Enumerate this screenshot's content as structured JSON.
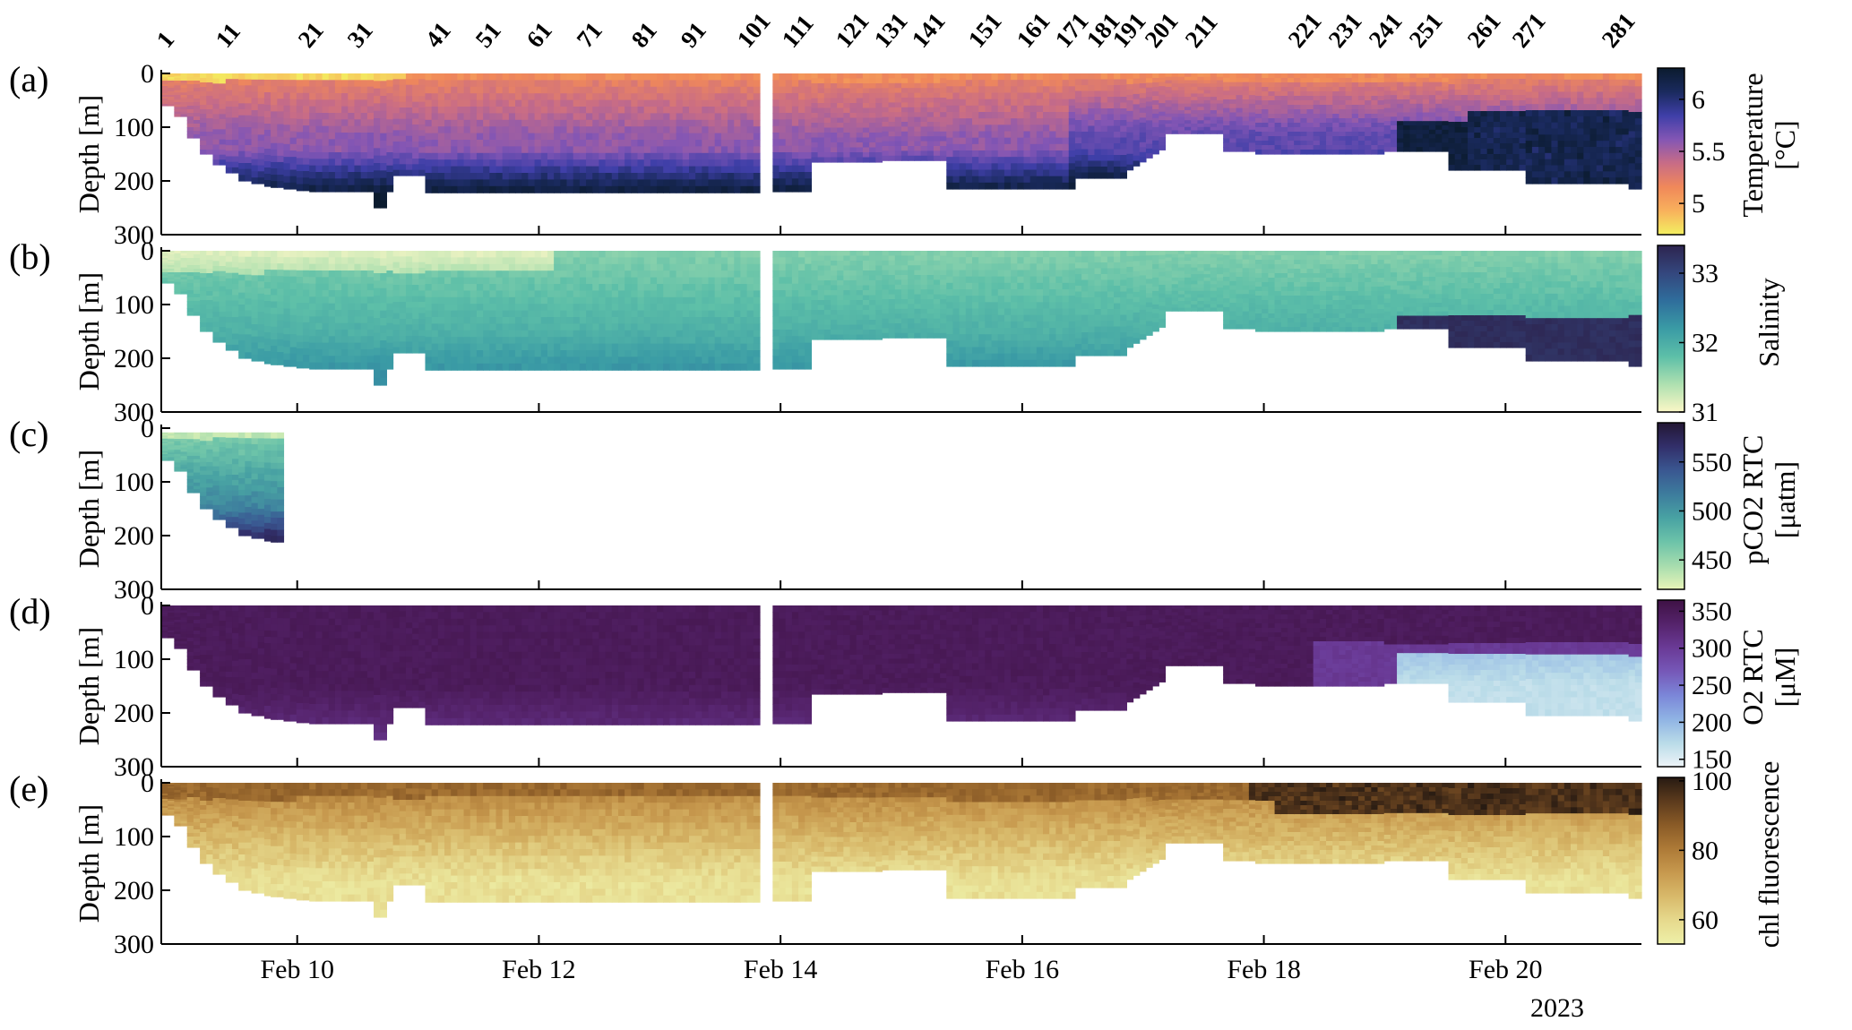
{
  "figure": {
    "year_label": "2023",
    "date_ticks": [
      "Feb 10",
      "Feb 12",
      "Feb 14",
      "Feb 16",
      "Feb 18",
      "Feb 20"
    ],
    "profile_numbers": [
      "1",
      "11",
      "21",
      "31",
      "41",
      "51",
      "61",
      "71",
      "81",
      "91",
      "101",
      "111",
      "121",
      "131",
      "141",
      "151",
      "161",
      "171",
      "181",
      "191",
      "201",
      "211",
      "221",
      "231",
      "241",
      "251",
      "261",
      "271",
      "281"
    ]
  },
  "chart_data": [
    {
      "type": "heatmap",
      "panel": "(a)",
      "ylabel": "Depth [m]",
      "yticks": [
        "0",
        "100",
        "200",
        "300"
      ],
      "ylim": [
        300,
        0
      ],
      "xlim": [
        "2023-02-08T21:00",
        "2023-02-21T03:00"
      ],
      "colorbar": {
        "label": [
          "Temperature",
          "[°C]"
        ],
        "ticks": [
          "5",
          "5.5",
          "6"
        ],
        "range": [
          4.7,
          6.3
        ],
        "colors": [
          "#f3f061",
          "#f8b15c",
          "#f0885a",
          "#c86c86",
          "#8456b4",
          "#3f3fa8",
          "#1a2a5e",
          "#0b1b2e"
        ]
      },
      "description_data": {
        "surface_0_50m": [
          4.9,
          5.0
        ],
        "mid_50_150m": [
          5.1,
          5.3
        ],
        "deep_150_200m": [
          5.8,
          6.2
        ],
        "late_deep_after_feb19": [
          6.2,
          6.3
        ]
      }
    },
    {
      "type": "heatmap",
      "panel": "(b)",
      "ylabel": "Depth [m]",
      "yticks": [
        "0",
        "100",
        "200",
        "300"
      ],
      "ylim": [
        300,
        0
      ],
      "colorbar": {
        "label": [
          "Salinity"
        ],
        "ticks": [
          "31",
          "32",
          "33"
        ],
        "range": [
          31,
          33.4
        ],
        "colors": [
          "#fbf7c6",
          "#aee0b0",
          "#5dbfa8",
          "#3a9ba5",
          "#2f6e9c",
          "#34477e",
          "#2d244f"
        ]
      },
      "description_data": {
        "surface_early": 31.1,
        "mid_layer": [
          31.8,
          32.0
        ],
        "deep_before_feb19": [
          32.1,
          32.4
        ],
        "deep_after_feb19": [
          33.2,
          33.4
        ]
      }
    },
    {
      "type": "heatmap",
      "panel": "(c)",
      "ylabel": "Depth [m]",
      "yticks": [
        "0",
        "100",
        "200",
        "300"
      ],
      "ylim": [
        300,
        0
      ],
      "data_span": [
        "2023-02-08T21:00",
        "2023-02-09T21:00"
      ],
      "colorbar": {
        "label": [
          "pCO2 RTC",
          "[μatm]"
        ],
        "ticks": [
          "450",
          "500",
          "550"
        ],
        "range": [
          420,
          590
        ],
        "colors": [
          "#e8f5b8",
          "#a6dcae",
          "#6cc3a9",
          "#48a2a3",
          "#3d7c9d",
          "#3a5791",
          "#322f6a",
          "#231734"
        ]
      },
      "description_data": {
        "surface": [
          440,
          470
        ],
        "mid": [
          490,
          510
        ],
        "deep_200m": [
          560,
          590
        ]
      }
    },
    {
      "type": "heatmap",
      "panel": "(d)",
      "ylabel": "Depth [m]",
      "yticks": [
        "0",
        "100",
        "200",
        "300"
      ],
      "ylim": [
        300,
        0
      ],
      "colorbar": {
        "label": [
          "O2 RTC",
          "[μM]"
        ],
        "ticks": [
          "150",
          "200",
          "250",
          "300",
          "350"
        ],
        "range": [
          140,
          365
        ],
        "colors": [
          "#eef4f8",
          "#b9dbe8",
          "#8fb3e4",
          "#7b86d8",
          "#7658b8",
          "#6a3a96",
          "#55236b",
          "#3f1245"
        ]
      },
      "description_data": {
        "surface_to_150m": [
          340,
          360
        ],
        "deep_before_feb19": [
          300,
          320
        ],
        "deep_after_feb19": [
          150,
          200
        ]
      }
    },
    {
      "type": "heatmap",
      "panel": "(e)",
      "ylabel": "Depth [m]",
      "yticks": [
        "0",
        "100",
        "200",
        "300"
      ],
      "ylim": [
        300,
        0
      ],
      "colorbar": {
        "label": [
          "chl fluorescence"
        ],
        "ticks": [
          "60",
          "80",
          "100"
        ],
        "range": [
          53,
          101
        ],
        "colors": [
          "#eef0a8",
          "#e6d98d",
          "#d8b96a",
          "#c7994e",
          "#ad7a37",
          "#8a5b27",
          "#5c3b1d",
          "#271a12"
        ]
      },
      "description_data": {
        "surface_late": [
          90,
          100
        ],
        "surface_early": [
          80,
          90
        ],
        "mid": [
          70,
          75
        ],
        "deep": [
          55,
          60
        ]
      }
    }
  ],
  "colors": {
    "temperature_cmap": "thermal",
    "salinity_cmap": "haline",
    "pco2_cmap": "deep",
    "oxygen_cmap": "dense",
    "chl_cmap": "turbid"
  }
}
